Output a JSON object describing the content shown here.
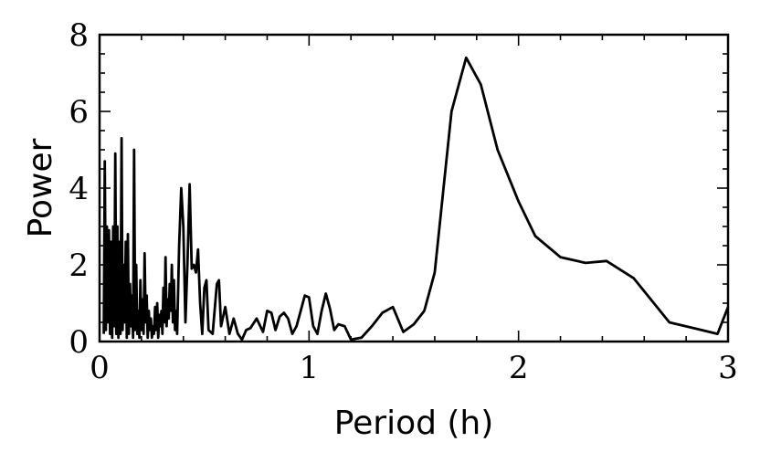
{
  "chart_data": {
    "type": "line",
    "xlabel": "Period (h)",
    "ylabel": "Power",
    "xlim": [
      0,
      3
    ],
    "ylim": [
      0,
      8
    ],
    "xticks": [
      "0",
      "1",
      "2",
      "3"
    ],
    "yticks": [
      "0",
      "2",
      "4",
      "6",
      "8"
    ],
    "grid": false,
    "line_color": "#000000",
    "series": [
      {
        "x": [
          0.02,
          0.025,
          0.03,
          0.035,
          0.04,
          0.045,
          0.05,
          0.055,
          0.06,
          0.065,
          0.07,
          0.075,
          0.08,
          0.085,
          0.09,
          0.095,
          0.1,
          0.105,
          0.11,
          0.115,
          0.12,
          0.125,
          0.13,
          0.135,
          0.14,
          0.145,
          0.15,
          0.155,
          0.16,
          0.165,
          0.17,
          0.175,
          0.18,
          0.185,
          0.19,
          0.195,
          0.2,
          0.205,
          0.21,
          0.215,
          0.22,
          0.225,
          0.23,
          0.235,
          0.24,
          0.245,
          0.25,
          0.255,
          0.26,
          0.265,
          0.27,
          0.275,
          0.28,
          0.285,
          0.29,
          0.295,
          0.3,
          0.305,
          0.31,
          0.315,
          0.32,
          0.325,
          0.33,
          0.335,
          0.34,
          0.345,
          0.35,
          0.355,
          0.36,
          0.365,
          0.37,
          0.38,
          0.39,
          0.4,
          0.41,
          0.42,
          0.43,
          0.44,
          0.45,
          0.46,
          0.47,
          0.48,
          0.49,
          0.5,
          0.51,
          0.52,
          0.54,
          0.56,
          0.57,
          0.58,
          0.6,
          0.62,
          0.64,
          0.66,
          0.68,
          0.7,
          0.72,
          0.75,
          0.78,
          0.8,
          0.82,
          0.84,
          0.86,
          0.88,
          0.9,
          0.92,
          0.94,
          0.96,
          0.98,
          1.0,
          1.02,
          1.04,
          1.06,
          1.08,
          1.1,
          1.12,
          1.14,
          1.17,
          1.2,
          1.25,
          1.3,
          1.35,
          1.4,
          1.45,
          1.5,
          1.55,
          1.6,
          1.68,
          1.75,
          1.82,
          1.9,
          2.0,
          2.08,
          2.2,
          2.32,
          2.42,
          2.55,
          2.72,
          2.95,
          3.0
        ],
        "y": [
          0.2,
          4.7,
          0.3,
          3.0,
          0.5,
          2.9,
          0.2,
          2.6,
          0.1,
          3.0,
          0.4,
          4.9,
          0.2,
          3.0,
          0.1,
          2.6,
          0.2,
          5.3,
          0.3,
          2.0,
          0.5,
          2.6,
          0.1,
          2.8,
          0.2,
          1.5,
          0.4,
          1.2,
          0.1,
          5.0,
          0.3,
          2.0,
          0.2,
          0.8,
          0.1,
          1.6,
          0.3,
          1.1,
          0.2,
          2.3,
          0.5,
          1.2,
          0.1,
          0.8,
          0.3,
          0.6,
          0.1,
          0.4,
          0.2,
          0.9,
          0.3,
          1.0,
          0.1,
          0.7,
          0.4,
          0.8,
          0.2,
          1.4,
          0.5,
          2.2,
          0.4,
          1.1,
          0.6,
          1.5,
          0.8,
          2.0,
          0.5,
          1.6,
          0.3,
          0.8,
          0.2,
          2.5,
          4.0,
          3.0,
          0.5,
          2.1,
          4.1,
          1.9,
          2.0,
          1.8,
          2.4,
          1.0,
          0.2,
          1.4,
          1.6,
          0.3,
          0.2,
          1.5,
          1.6,
          0.4,
          0.9,
          0.2,
          0.6,
          0.2,
          0.05,
          0.3,
          0.35,
          0.6,
          0.25,
          0.8,
          0.75,
          0.3,
          0.65,
          0.75,
          0.6,
          0.2,
          0.4,
          0.8,
          1.2,
          1.15,
          0.4,
          0.2,
          0.8,
          1.25,
          0.85,
          0.3,
          0.45,
          0.4,
          0.05,
          0.1,
          0.4,
          0.75,
          0.9,
          0.25,
          0.45,
          0.8,
          1.8,
          6.0,
          7.4,
          6.7,
          5.0,
          3.65,
          2.75,
          2.2,
          2.05,
          2.1,
          1.65,
          0.5,
          0.2,
          0.9
        ]
      }
    ]
  }
}
